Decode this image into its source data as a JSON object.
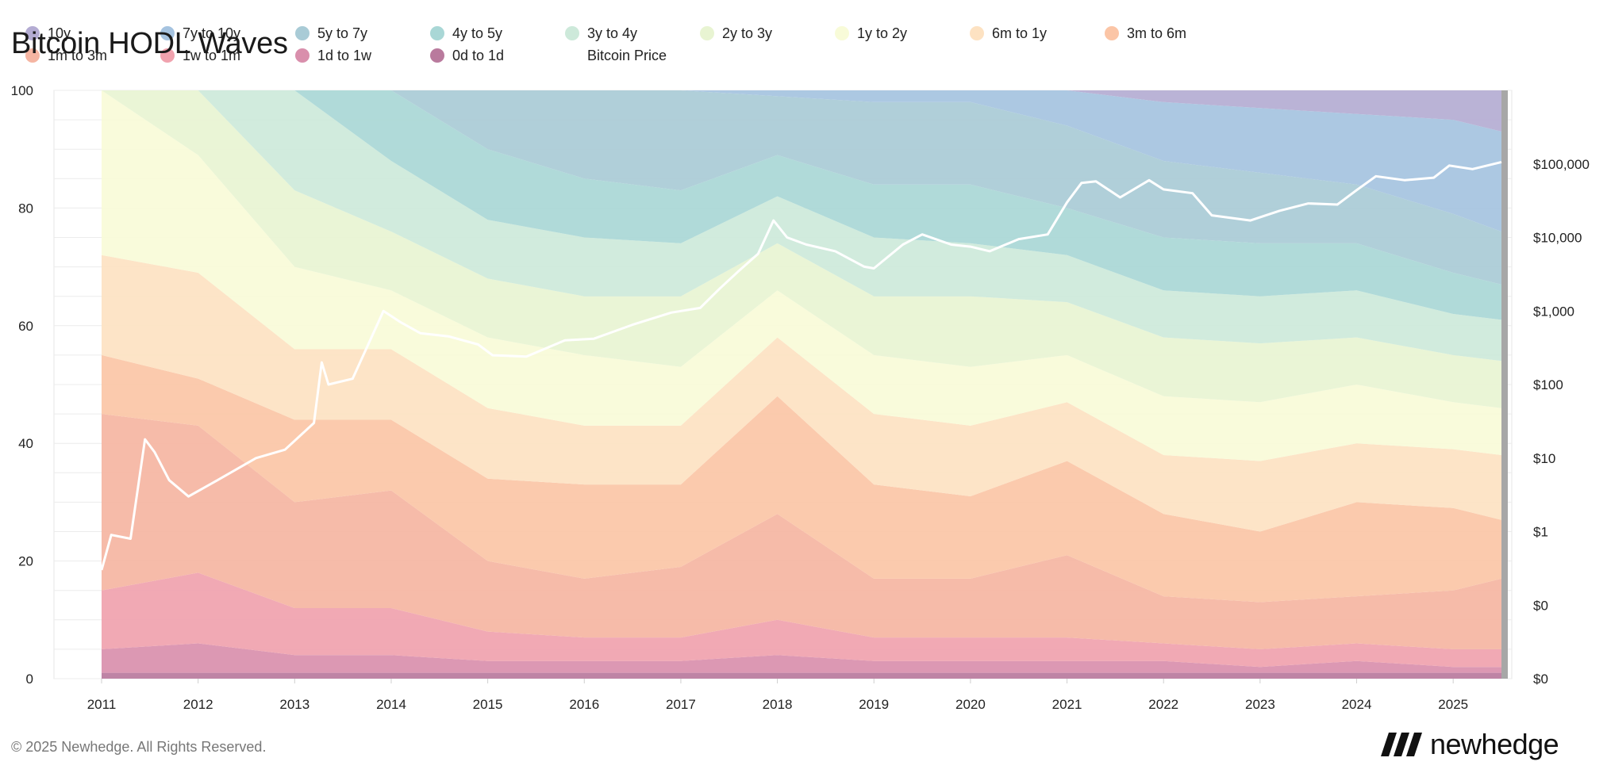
{
  "chart_data": {
    "type": "area",
    "title": "Bitcoin HODL Waves",
    "stacking": "percent",
    "x": [
      2011,
      2012,
      2013,
      2014,
      2015,
      2016,
      2017,
      2018,
      2019,
      2020,
      2021,
      2022,
      2023,
      2024,
      2025,
      2025.5
    ],
    "x_ticks": [
      "2011",
      "2012",
      "2013",
      "2014",
      "2015",
      "2016",
      "2017",
      "2018",
      "2019",
      "2020",
      "2021",
      "2022",
      "2023",
      "2024",
      "2025"
    ],
    "ylim": [
      0,
      100
    ],
    "y_ticks": [
      "0",
      "20",
      "40",
      "60",
      "80",
      "100"
    ],
    "y2_ticks": [
      "$0",
      "$0",
      "$1",
      "$10",
      "$100",
      "$1,000",
      "$10,000",
      "$100,000"
    ],
    "y2_scale": "log",
    "legend_position": "top",
    "series": [
      {
        "name": "0d to 1d",
        "color": "#b97a9d",
        "values": [
          1,
          1,
          1,
          1,
          1,
          1,
          1,
          1,
          1,
          1,
          1,
          1,
          1,
          1,
          1,
          1
        ]
      },
      {
        "name": "1d to 1w",
        "color": "#d98fac",
        "values": [
          4,
          5,
          3,
          3,
          2,
          2,
          2,
          3,
          2,
          2,
          2,
          2,
          1,
          2,
          1,
          1
        ]
      },
      {
        "name": "1w to 1m",
        "color": "#f0a2ae",
        "values": [
          10,
          12,
          8,
          8,
          5,
          4,
          4,
          6,
          4,
          4,
          4,
          3,
          3,
          3,
          3,
          3
        ]
      },
      {
        "name": "1m to 3m",
        "color": "#f5b5a2",
        "values": [
          30,
          25,
          18,
          20,
          12,
          10,
          12,
          18,
          10,
          10,
          14,
          8,
          8,
          8,
          10,
          12
        ]
      },
      {
        "name": "3m to 6m",
        "color": "#fbc5a6",
        "values": [
          10,
          8,
          14,
          12,
          14,
          16,
          14,
          20,
          16,
          14,
          16,
          14,
          12,
          16,
          14,
          10
        ]
      },
      {
        "name": "6m to 1y",
        "color": "#fde2c2",
        "values": [
          17,
          18,
          12,
          12,
          12,
          10,
          10,
          10,
          12,
          12,
          10,
          10,
          12,
          10,
          10,
          11
        ]
      },
      {
        "name": "1y to 2y",
        "color": "#f8fbd8",
        "values": [
          28,
          20,
          14,
          10,
          12,
          12,
          10,
          8,
          10,
          10,
          8,
          10,
          10,
          10,
          8,
          8
        ]
      },
      {
        "name": "2y to 3y",
        "color": "#e8f4d2",
        "values": [
          0,
          11,
          13,
          10,
          10,
          10,
          12,
          8,
          10,
          12,
          9,
          10,
          10,
          8,
          8,
          8
        ]
      },
      {
        "name": "3y to 4y",
        "color": "#cde9da",
        "values": [
          0,
          0,
          17,
          12,
          10,
          10,
          9,
          8,
          10,
          9,
          8,
          8,
          8,
          8,
          7,
          7
        ]
      },
      {
        "name": "4y to 5y",
        "color": "#a9d7d6",
        "values": [
          0,
          0,
          0,
          12,
          12,
          10,
          9,
          7,
          9,
          10,
          8,
          9,
          9,
          8,
          7,
          6
        ]
      },
      {
        "name": "5y to 7y",
        "color": "#a9cbd6",
        "values": [
          0,
          0,
          0,
          0,
          10,
          15,
          17,
          10,
          14,
          14,
          14,
          13,
          12,
          10,
          10,
          9
        ]
      },
      {
        "name": "7y to 10y",
        "color": "#a5c3e0",
        "values": [
          0,
          0,
          0,
          0,
          0,
          0,
          0,
          1,
          2,
          2,
          6,
          10,
          11,
          12,
          16,
          17
        ]
      },
      {
        "name": "10y",
        "color": "#b4acd3",
        "values": [
          0,
          0,
          0,
          0,
          0,
          0,
          0,
          0,
          0,
          0,
          0,
          2,
          3,
          4,
          5,
          7
        ]
      }
    ],
    "price_series": {
      "name": "Bitcoin Price",
      "color": "#ffffff",
      "x": [
        2011,
        2011.1,
        2011.3,
        2011.45,
        2011.55,
        2011.7,
        2011.9,
        2012.2,
        2012.6,
        2012.9,
        2013.2,
        2013.28,
        2013.35,
        2013.6,
        2013.92,
        2014.1,
        2014.3,
        2014.6,
        2014.9,
        2015.05,
        2015.4,
        2015.8,
        2016.1,
        2016.5,
        2016.9,
        2017.2,
        2017.4,
        2017.6,
        2017.8,
        2017.96,
        2018.1,
        2018.3,
        2018.6,
        2018.9,
        2019.0,
        2019.3,
        2019.5,
        2019.8,
        2020.0,
        2020.2,
        2020.5,
        2020.8,
        2021.0,
        2021.15,
        2021.3,
        2021.55,
        2021.85,
        2022.0,
        2022.3,
        2022.5,
        2022.9,
        2023.2,
        2023.5,
        2023.8,
        2024.0,
        2024.2,
        2024.5,
        2024.8,
        2024.96,
        2025.2,
        2025.5
      ],
      "y": [
        0.3,
        0.9,
        0.8,
        18,
        12,
        5,
        3,
        5,
        10,
        13,
        30,
        200,
        100,
        120,
        1000,
        700,
        500,
        450,
        350,
        250,
        240,
        400,
        420,
        650,
        950,
        1100,
        2000,
        3500,
        6000,
        17000,
        10000,
        8000,
        6500,
        4000,
        3800,
        8000,
        11000,
        8000,
        7500,
        6500,
        9500,
        11000,
        30000,
        55000,
        58000,
        35000,
        60000,
        45000,
        40000,
        20000,
        17000,
        23000,
        29000,
        28000,
        44000,
        68000,
        60000,
        65000,
        95000,
        85000,
        106000
      ]
    }
  },
  "legend": [
    {
      "label": "10y",
      "color": "#b4acd3"
    },
    {
      "label": "7y to 10y",
      "color": "#a5c3e0"
    },
    {
      "label": "5y to 7y",
      "color": "#a9cbd6"
    },
    {
      "label": "4y to 5y",
      "color": "#a9d7d6"
    },
    {
      "label": "3y to 4y",
      "color": "#cde9da"
    },
    {
      "label": "2y to 3y",
      "color": "#e8f4d2"
    },
    {
      "label": "1y to 2y",
      "color": "#f8fbd8"
    },
    {
      "label": "6m to 1y",
      "color": "#fde2c2"
    },
    {
      "label": "3m to 6m",
      "color": "#fbc5a6"
    },
    {
      "label": "1m to 3m",
      "color": "#f5b5a2"
    },
    {
      "label": "1w to 1m",
      "color": "#f0a2ae"
    },
    {
      "label": "1d to 1w",
      "color": "#d98fac"
    },
    {
      "label": "0d to 1d",
      "color": "#b97a9d"
    },
    {
      "label": "Bitcoin Price",
      "color": "#ffffff"
    }
  ],
  "footer": {
    "copyright": "© 2025 Newhedge. All Rights Reserved.",
    "brand": "newhedge"
  }
}
